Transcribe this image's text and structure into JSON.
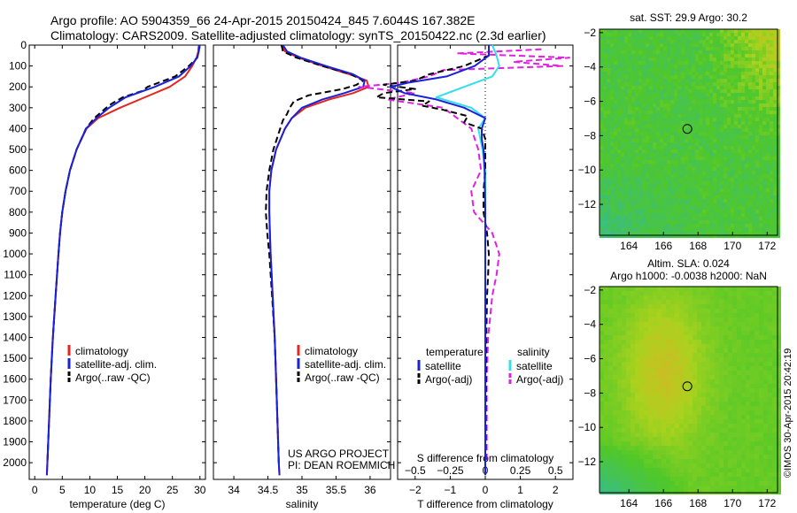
{
  "header": {
    "line1": "Argo profile: AO 5904359_66 24-Apr-2015 20150424_845 7.6044S 167.382E",
    "line2": "Climatology: CARS2009. Satellite-adjusted climatology: synTS_20150422.nc (2.3d earlier)"
  },
  "colors": {
    "climatology": "#e8251c",
    "satellite": "#1a22d9",
    "argo": "#000000",
    "salinity_satellite": "#33e0e8",
    "salinity_argo": "#e020e0"
  },
  "side_text": "©IMOS 30-Apr-2015 20:42:19",
  "project_text": [
    "US ARGO PROJECT",
    "PI: DEAN ROEMMICH"
  ],
  "chart_data": [
    {
      "type": "line",
      "id": "temperature",
      "xlabel": "temperature (deg C)",
      "ylabel": "",
      "xlim": [
        -1,
        31
      ],
      "ylim": [
        2080,
        0
      ],
      "xticks": [
        0,
        5,
        10,
        15,
        20,
        25,
        30
      ],
      "yticks": [
        0,
        100,
        200,
        300,
        400,
        500,
        600,
        700,
        800,
        900,
        1000,
        1100,
        1200,
        1300,
        1400,
        1500,
        1600,
        1700,
        1800,
        1900,
        2000
      ],
      "legend": [
        "climatology",
        "satellite-adj. clim.",
        "Argo(..raw -QC)"
      ],
      "series": [
        {
          "name": "climatology",
          "depth": [
            0,
            30,
            60,
            100,
            150,
            200,
            250,
            300,
            350,
            400,
            500,
            600,
            700,
            800,
            900,
            1000,
            1200,
            1400,
            1600,
            1800,
            2000,
            2060
          ],
          "values": [
            29.8,
            29.7,
            29.4,
            28.6,
            27.3,
            24.5,
            20,
            15.5,
            11.5,
            9.4,
            7.6,
            6.4,
            5.6,
            5.0,
            4.6,
            4.3,
            3.8,
            3.3,
            2.9,
            2.6,
            2.3,
            2.2
          ]
        },
        {
          "name": "satellite-adj. clim.",
          "depth": [
            0,
            30,
            60,
            100,
            150,
            200,
            250,
            300,
            350,
            400,
            500,
            600,
            700,
            800,
            900,
            1000,
            1200,
            1400,
            1600,
            1800,
            2000,
            2060
          ],
          "values": [
            29.9,
            29.8,
            29.5,
            28.3,
            26.2,
            21.8,
            16.5,
            13.5,
            11.2,
            9.3,
            7.6,
            6.4,
            5.6,
            5.0,
            4.6,
            4.3,
            3.8,
            3.3,
            2.9,
            2.6,
            2.3,
            2.2
          ]
        },
        {
          "name": "Argo(..raw -QC)",
          "depth": [
            0,
            30,
            60,
            100,
            150,
            200,
            220,
            250,
            280,
            300,
            350,
            400,
            500,
            600,
            700,
            800,
            900,
            1000,
            1200,
            1400,
            1600,
            1800,
            2000
          ],
          "values": [
            29.9,
            29.8,
            29.5,
            28.0,
            25.5,
            20.5,
            19.5,
            16.0,
            14.0,
            13.0,
            10.8,
            9.3,
            7.6,
            6.4,
            5.6,
            5.0,
            4.6,
            4.3,
            3.8,
            3.3,
            2.9,
            2.6,
            2.3
          ]
        }
      ]
    },
    {
      "type": "line",
      "id": "salinity",
      "xlabel": "salinity",
      "ylabel": "",
      "xlim": [
        33.7,
        36.3
      ],
      "ylim": [
        2080,
        0
      ],
      "xticks": [
        34,
        34.5,
        35,
        35.5,
        36
      ],
      "legend": [
        "climatology",
        "satellite-adj. clim.",
        "Argo(..raw -QC)"
      ],
      "series": [
        {
          "name": "climatology",
          "depth": [
            0,
            30,
            60,
            100,
            140,
            170,
            200,
            230,
            260,
            300,
            350,
            400,
            500,
            600,
            700,
            800,
            900,
            1000,
            1200,
            1400,
            1600,
            1800,
            2000,
            2060
          ],
          "values": [
            34.7,
            34.75,
            34.95,
            35.3,
            35.7,
            35.95,
            35.98,
            35.75,
            35.4,
            35.05,
            34.85,
            34.75,
            34.62,
            34.55,
            34.52,
            34.52,
            34.53,
            34.54,
            34.57,
            34.6,
            34.62,
            34.64,
            34.66,
            34.67
          ]
        },
        {
          "name": "satellite-adj. clim.",
          "depth": [
            0,
            30,
            60,
            100,
            140,
            170,
            200,
            230,
            260,
            300,
            350,
            400,
            500,
            600,
            700,
            800,
            900,
            1000,
            1200,
            1400,
            1600,
            1800,
            2000,
            2060
          ],
          "values": [
            34.72,
            34.78,
            34.98,
            35.35,
            35.75,
            35.92,
            35.9,
            35.62,
            35.3,
            35.0,
            34.85,
            34.75,
            34.62,
            34.55,
            34.52,
            34.52,
            34.53,
            34.54,
            34.57,
            34.6,
            34.62,
            34.64,
            34.66,
            34.67
          ]
        },
        {
          "name": "Argo(..raw -QC)",
          "depth": [
            0,
            30,
            60,
            100,
            140,
            170,
            190,
            210,
            240,
            270,
            300,
            330,
            360,
            400,
            500,
            600,
            700,
            800,
            900,
            1000,
            1200,
            1400,
            1600,
            1800,
            2000
          ],
          "values": [
            34.7,
            34.72,
            34.92,
            35.3,
            35.72,
            35.9,
            35.8,
            35.6,
            35.1,
            34.88,
            34.82,
            34.78,
            34.72,
            34.68,
            34.58,
            34.52,
            34.48,
            34.47,
            34.49,
            34.52,
            34.56,
            34.6,
            34.62,
            34.64,
            34.66
          ]
        }
      ]
    },
    {
      "type": "line",
      "id": "difference",
      "xlabel": "T difference from climatology",
      "top_label": "S difference from climatology",
      "xlim": [
        -2.5,
        2.5
      ],
      "ylim": [
        2080,
        0
      ],
      "xticks": [
        -2,
        -1,
        0,
        1,
        2
      ],
      "top_xticks": [
        -0.5,
        -0.25,
        0,
        0.25,
        0.5
      ],
      "legend_left_title": "temperature",
      "legend_right_title": "salinity",
      "legend": [
        "satellite",
        "Argo(-adj)",
        "satellite",
        "Argo(-adj)"
      ],
      "series": [
        {
          "name": "satellite",
          "kind": "temperature",
          "depth": [
            0,
            50,
            100,
            150,
            180,
            200,
            230,
            260,
            300,
            350,
            400,
            450,
            500,
            600,
            800,
            1000,
            1500,
            2000,
            2060
          ],
          "values": [
            0.1,
            0.1,
            -0.3,
            -1.1,
            -2.2,
            -2.7,
            -2.3,
            -1.4,
            -0.6,
            0.0,
            -0.1,
            -0.1,
            -0.05,
            -0.02,
            0,
            0,
            0,
            0,
            0
          ]
        },
        {
          "name": "Argo(-adj)",
          "kind": "temperature",
          "depth": [
            0,
            50,
            100,
            140,
            170,
            190,
            210,
            230,
            250,
            270,
            290,
            310,
            340,
            370,
            400,
            450,
            500,
            600,
            700,
            800,
            900,
            1000,
            1100,
            1200,
            1400,
            1600,
            1800,
            2000
          ],
          "values": [
            0.1,
            0.1,
            -0.6,
            -1.6,
            -2.0,
            -2.9,
            -2.0,
            -2.9,
            -3.1,
            -1.6,
            -1.8,
            -1.2,
            -0.5,
            -0.6,
            -0.1,
            0.0,
            0.0,
            0.0,
            -0.05,
            -0.05,
            0.05,
            0.1,
            0.08,
            0.05,
            0.03,
            0.02,
            0.01,
            0.01
          ]
        },
        {
          "name": "satellite",
          "kind": "salinity",
          "depth": [
            0,
            50,
            100,
            150,
            200,
            250,
            300,
            350,
            400,
            500,
            600,
            800,
            1000,
            1500,
            2000,
            2060
          ],
          "values": [
            0.05,
            0.08,
            0.1,
            0.05,
            -0.15,
            -0.35,
            -0.1,
            0.0,
            -0.05,
            -0.02,
            0,
            0,
            0,
            0,
            0,
            0
          ]
        },
        {
          "name": "Argo(-adj)",
          "kind": "salinity",
          "depth": [
            20,
            40,
            60,
            80,
            100,
            120,
            150,
            180,
            200,
            230,
            260,
            300,
            350,
            400,
            500,
            600,
            700,
            800,
            900,
            1000,
            1100,
            1200,
            1400,
            1600,
            1800,
            2000
          ],
          "values": [
            0.4,
            -0.2,
            0.6,
            0.2,
            0.55,
            -0.3,
            -0.4,
            -0.6,
            -0.9,
            -0.5,
            -0.7,
            -0.3,
            -0.2,
            -0.1,
            -0.05,
            -0.03,
            -0.1,
            -0.08,
            0.05,
            0.1,
            0.08,
            0.05,
            0.02,
            0.01,
            0.01,
            0.01
          ]
        }
      ]
    },
    {
      "type": "heatmap",
      "id": "sst_map",
      "title": "sat. SST: 29.9 Argo: 30.2",
      "xlim": [
        162.3,
        172.6
      ],
      "ylim": [
        -13.8,
        -1.8
      ],
      "xticks": [
        164,
        166,
        168,
        170,
        172
      ],
      "yticks": [
        -2,
        -4,
        -6,
        -8,
        -10,
        -12
      ],
      "marker": {
        "lon": 167.382,
        "lat": -7.6044
      }
    },
    {
      "type": "heatmap",
      "id": "sla_map",
      "title": [
        "Altim. SLA: 0.024",
        "Argo h1000: -0.0038 h2000: NaN"
      ],
      "xlim": [
        162.3,
        172.6
      ],
      "ylim": [
        -13.8,
        -1.8
      ],
      "xticks": [
        164,
        166,
        168,
        170,
        172
      ],
      "yticks": [
        -2,
        -4,
        -6,
        -8,
        -10,
        -12
      ],
      "marker": {
        "lon": 167.382,
        "lat": -7.6044
      }
    }
  ]
}
